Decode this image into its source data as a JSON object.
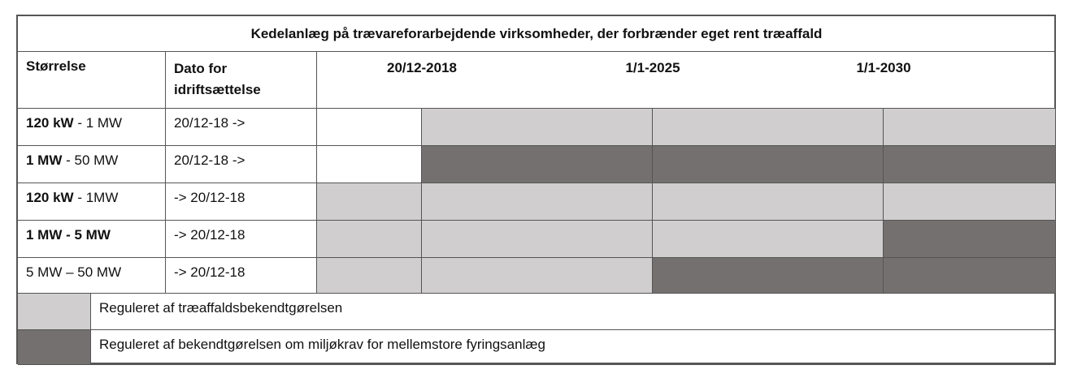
{
  "title": "Kedelanlæg på trævareforarbejdende virksomheder, der forbrænder eget rent træaffald",
  "headers": {
    "size": "Størrelse",
    "date": "Dato for idriftsættelse",
    "dates": [
      "20/12-2018",
      "1/1-2025",
      "1/1-2030"
    ]
  },
  "rows": [
    {
      "size_bold": "120 kW",
      "size_rest": " - 1 MW",
      "date": "20/12-18 ->",
      "cells": [
        "none",
        "light",
        "light",
        "light"
      ]
    },
    {
      "size_bold": "1 MW",
      "size_rest": " - 50 MW",
      "date": "20/12-18 ->",
      "cells": [
        "none",
        "dark",
        "dark",
        "dark"
      ]
    },
    {
      "size_bold": "120 kW",
      "size_rest": " - 1MW",
      "date": "-> 20/12-18",
      "cells": [
        "light",
        "light",
        "light",
        "light"
      ]
    },
    {
      "size_bold": "1 MW - 5 MW",
      "size_rest": "",
      "date": "-> 20/12-18",
      "cells": [
        "light",
        "light",
        "light",
        "dark"
      ]
    },
    {
      "size_bold": "",
      "size_rest": "5 MW – 50 MW",
      "date": "-> 20/12-18",
      "cells": [
        "light",
        "light",
        "dark",
        "dark"
      ]
    }
  ],
  "legend": [
    {
      "color": "light",
      "label": "Reguleret af træaffaldsbekendtgørelsen"
    },
    {
      "color": "dark",
      "label": "Reguleret af bekendtgørelsen om miljøkrav for mellemstore fyringsanlæg"
    }
  ],
  "colors": {
    "light": "#d0cecf",
    "dark": "#747070",
    "none": "#ffffff"
  }
}
